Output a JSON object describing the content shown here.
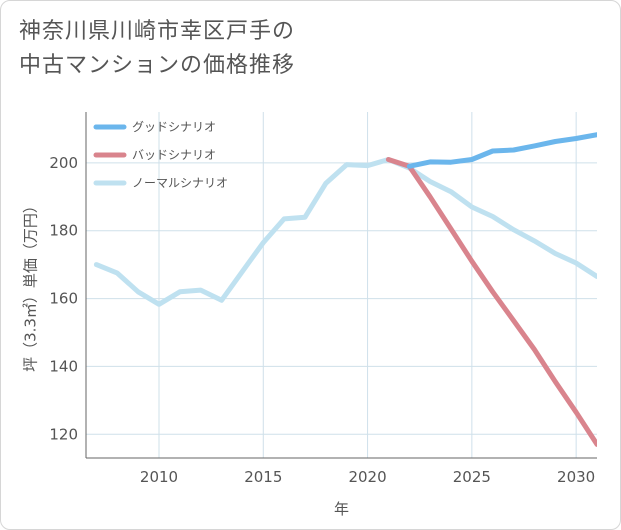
{
  "title_lines": [
    "神奈川県川崎市幸区戸手の",
    "中古マンションの価格推移"
  ],
  "colors": {
    "good": "#6bb6ec",
    "bad": "#d9848d",
    "normal": "#bfe1f0",
    "grid": "#cfe0ea",
    "axis": "#555555"
  },
  "chart_data": {
    "type": "line",
    "title": "神奈川県川崎市幸区戸手の中古マンションの価格推移",
    "xlabel": "年",
    "ylabel": "坪（3.3㎡）単価（万円）",
    "xlim": [
      2006.5,
      2031
    ],
    "ylim": [
      113,
      215
    ],
    "xticks": [
      2010,
      2015,
      2020,
      2025,
      2030
    ],
    "yticks": [
      120,
      140,
      160,
      180,
      200
    ],
    "grid": true,
    "legend_position": "top-left",
    "series": [
      {
        "name": "グッドシナリオ",
        "color": "#6bb6ec",
        "x": [
          2022,
          2023,
          2024,
          2025,
          2026,
          2027,
          2028,
          2029,
          2030,
          2031
        ],
        "y": [
          199,
          200.3,
          200.2,
          201,
          203.5,
          203.8,
          205,
          206.3,
          207.2,
          208.3
        ]
      },
      {
        "name": "バッドシナリオ",
        "color": "#d9848d",
        "x": [
          2021,
          2022,
          2023,
          2024,
          2025,
          2026,
          2027,
          2028,
          2029,
          2030,
          2031
        ],
        "y": [
          201,
          199,
          190,
          180.5,
          171,
          162,
          153.5,
          145,
          135.5,
          126.5,
          117
        ]
      },
      {
        "name": "ノーマルシナリオ",
        "color": "#bfe1f0",
        "x": [
          2007,
          2008,
          2009,
          2010,
          2011,
          2012,
          2013,
          2014,
          2015,
          2016,
          2017,
          2018,
          2019,
          2020,
          2021,
          2022,
          2023,
          2024,
          2025,
          2026,
          2027,
          2028,
          2029,
          2030,
          2031
        ],
        "y": [
          170,
          167.5,
          162,
          158.3,
          162,
          162.5,
          159.5,
          168,
          176.5,
          183.5,
          184,
          194,
          199.5,
          199.2,
          201,
          198.5,
          194.5,
          191.5,
          187,
          184.2,
          180.3,
          177,
          173.3,
          170.5,
          166.5
        ]
      }
    ]
  }
}
